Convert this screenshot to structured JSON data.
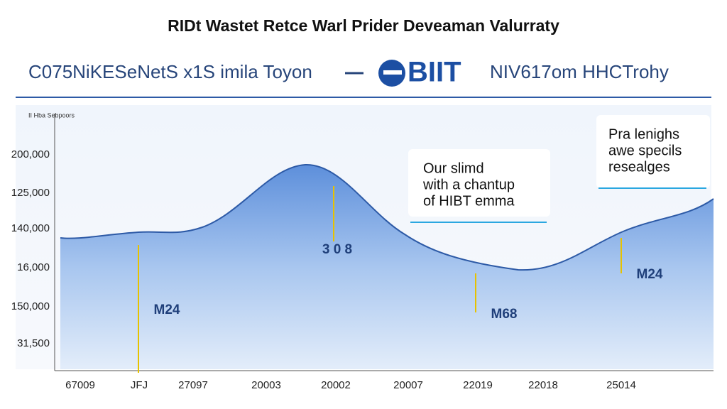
{
  "header": {
    "title": "RIDt Wastet Retce Warl Prider Deveaman Valurraty",
    "subtitle_left": "C075NiKESeNetS x1S imila Toyon",
    "logo": "BIIT",
    "subtitle_right": "NIV617om HHCTrohy"
  },
  "chart": {
    "caption": "II Hba Sebpoors",
    "y_labels": [
      "200,000",
      "125,000",
      "140,000",
      "16,000",
      "150,000",
      "31,500"
    ],
    "x_labels": [
      "67009",
      "JFJ",
      "27097",
      "20003",
      "20002",
      "20007",
      "22019",
      "22018",
      "25014"
    ],
    "annotations": [
      "3 0 8",
      "M24",
      "M68",
      "M24"
    ],
    "callouts": [
      [
        "Our slimd",
        "with a chantup",
        "of HIBT emma"
      ],
      [
        "Pra lenighs",
        "awe specils",
        "resealges"
      ]
    ]
  }
}
